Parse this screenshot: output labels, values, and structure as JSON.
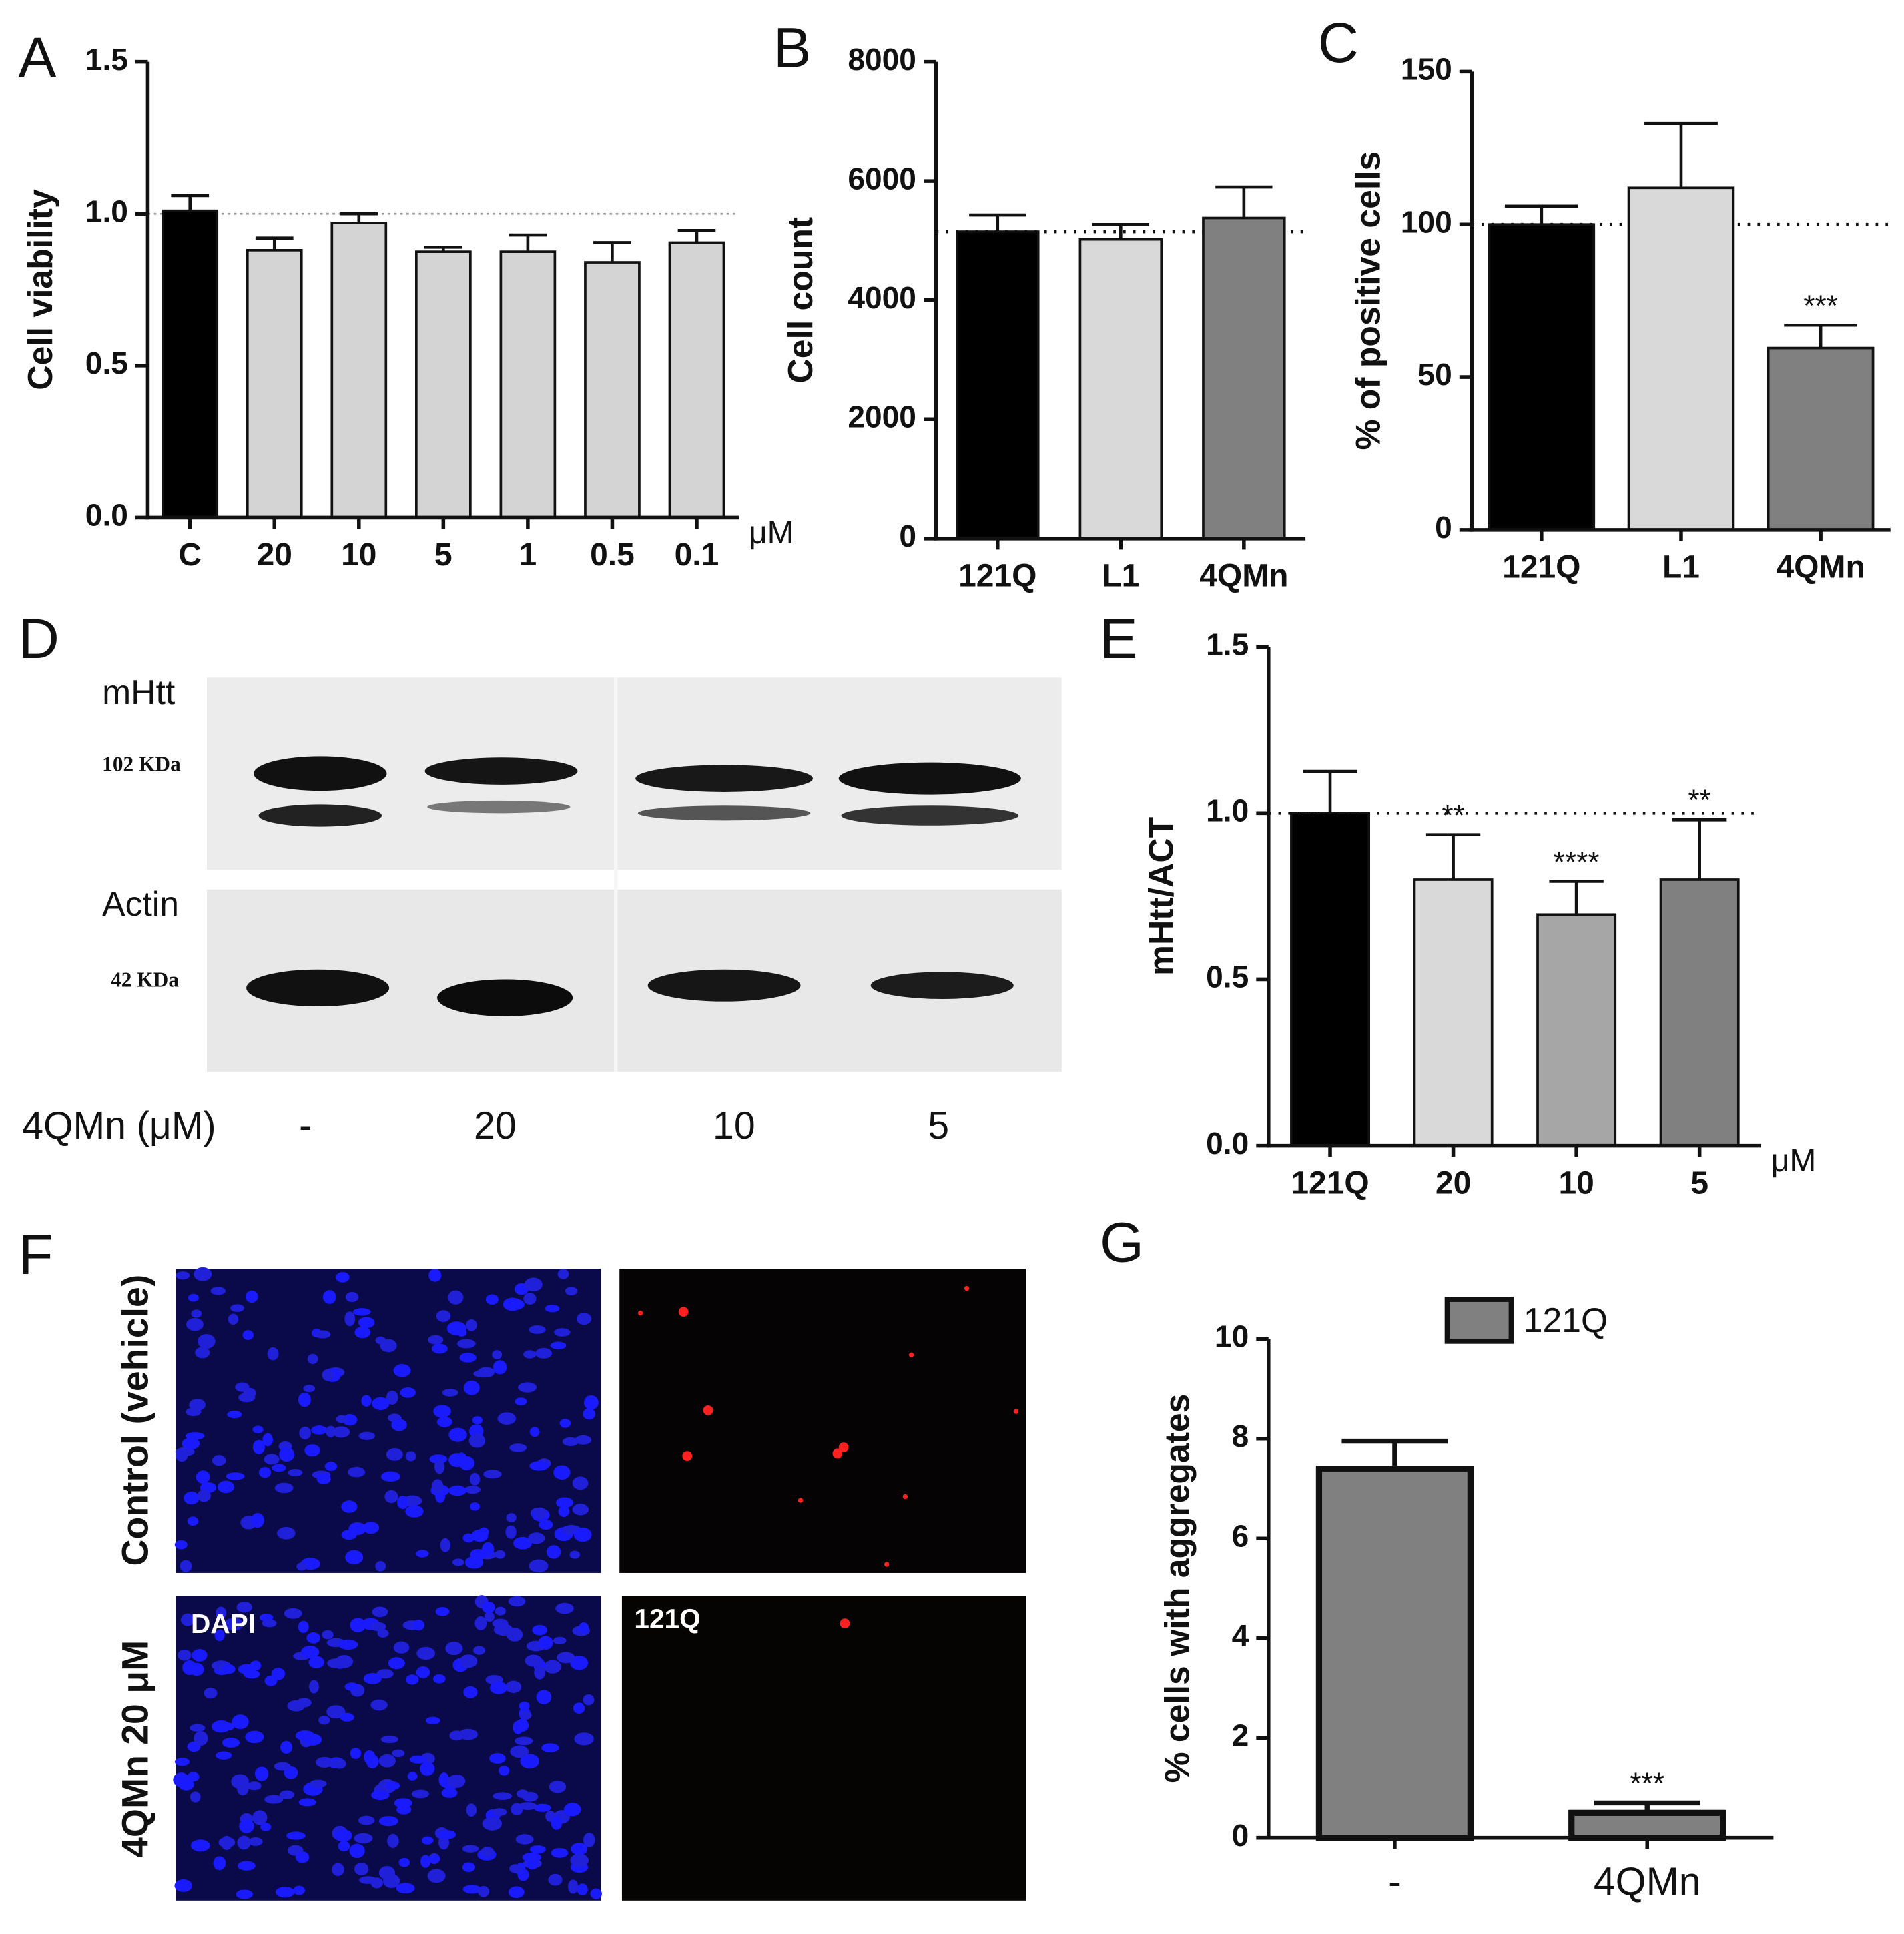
{
  "chart_data": [
    {
      "type": "bar",
      "panel": "A",
      "ylabel": "Cell viability",
      "x_unit": "μM",
      "categories": [
        "C",
        "20",
        "10",
        "5",
        "1",
        "0.5",
        "0.1"
      ],
      "values": [
        1.01,
        0.88,
        0.97,
        0.875,
        0.875,
        0.84,
        0.905
      ],
      "errors": [
        0.05,
        0.04,
        0.03,
        0.015,
        0.055,
        0.065,
        0.04
      ],
      "colors": [
        "#000000",
        "#d4d4d4",
        "#d4d4d4",
        "#d4d4d4",
        "#d4d4d4",
        "#d4d4d4",
        "#d4d4d4"
      ],
      "reference_line": 1,
      "ylim": [
        0,
        1.5
      ],
      "yticks": [
        {
          "value": 0,
          "label": "0.0"
        },
        0.5,
        {
          "value": 1,
          "label": "1.0"
        },
        1.5
      ]
    },
    {
      "type": "bar",
      "panel": "B",
      "ylabel": "Cell count",
      "categories": [
        "121Q",
        "L1",
        "4QMn"
      ],
      "values": [
        5150,
        5020,
        5380
      ],
      "errors": [
        280,
        250,
        520
      ],
      "colors": [
        "#000000",
        "#d9d9d9",
        "#808080"
      ],
      "reference_line": 5150,
      "ylim": [
        0,
        8000
      ],
      "yticks": [
        0,
        2000,
        4000,
        6000,
        8000
      ]
    },
    {
      "type": "bar",
      "panel": "C",
      "ylabel": "% of positive cells",
      "categories": [
        "121Q",
        "L1",
        "4QMn"
      ],
      "values": [
        100,
        112,
        59.5
      ],
      "errors": [
        6,
        21,
        7.5
      ],
      "colors": [
        "#000000",
        "#d9d9d9",
        "#808080"
      ],
      "reference_line": 100,
      "ylim": [
        0,
        150
      ],
      "yticks": [
        0,
        50,
        100,
        150
      ],
      "annotations": [
        {
          "category": "4QMn",
          "text": "***"
        }
      ]
    },
    {
      "type": "bar",
      "panel": "E",
      "ylabel": "mHtt/ACT",
      "x_unit": "μM",
      "categories": [
        "121Q",
        "20",
        "10",
        "5"
      ],
      "values": [
        1.0,
        0.8,
        0.695,
        0.8
      ],
      "errors": [
        0.125,
        0.135,
        0.1,
        0.18
      ],
      "colors": [
        "#000000",
        "#d9d9d9",
        "#a6a6a6",
        "#808080"
      ],
      "reference_line": 1,
      "ylim": [
        0,
        1.5
      ],
      "yticks": [
        {
          "value": 0,
          "label": "0.0"
        },
        0.5,
        {
          "value": 1,
          "label": "1.0"
        },
        1.5
      ],
      "annotations": [
        {
          "category": "20",
          "text": "**"
        },
        {
          "category": "10",
          "text": "****"
        },
        {
          "category": "5",
          "text": "**"
        }
      ]
    },
    {
      "type": "bar",
      "panel": "G",
      "ylabel": "% cells with aggregates",
      "categories": [
        "-",
        "4QMn"
      ],
      "series": [
        {
          "name": "121Q",
          "color": "#808080",
          "values": [
            7.4,
            0.5
          ]
        }
      ],
      "errors": [
        0.55,
        0.2
      ],
      "legend": "top",
      "ylim": [
        0,
        10
      ],
      "yticks": [
        0,
        2,
        4,
        6,
        8,
        10
      ],
      "annotations": [
        {
          "category": "4QMn",
          "text": "***"
        }
      ]
    }
  ],
  "blot": {
    "panel": "D",
    "rows": [
      {
        "label": "mHtt",
        "size": "102 KDa"
      },
      {
        "label": "Actin",
        "size": "42 KDa"
      }
    ],
    "treatment_label": "4QMn (μM)",
    "lanes": [
      "-",
      "20",
      "10",
      "5"
    ]
  },
  "micrographs": {
    "panel": "F",
    "rows": [
      "Control (vehicle)",
      "4QMn 20 μM"
    ],
    "channels": [
      "DAPI",
      "121Q"
    ]
  }
}
